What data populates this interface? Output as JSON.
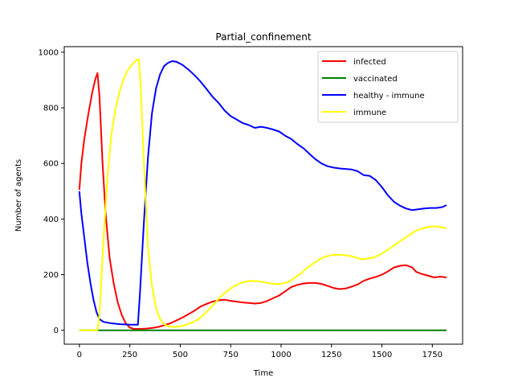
{
  "chart_data": {
    "type": "line",
    "title": "Partial_confinement",
    "xlabel": "Time",
    "ylabel": "Number of agents",
    "xlim": [
      -75,
      1900
    ],
    "ylim": [
      -50,
      1020
    ],
    "xticks": [
      0,
      250,
      500,
      750,
      1000,
      1250,
      1500,
      1750
    ],
    "yticks": [
      0,
      200,
      400,
      600,
      800,
      1000
    ],
    "grid": false,
    "legend_position": "top-right",
    "series": [
      {
        "name": "infected",
        "color": "#ff0000",
        "points": [
          [
            0,
            505
          ],
          [
            10,
            600
          ],
          [
            25,
            690
          ],
          [
            45,
            780
          ],
          [
            65,
            860
          ],
          [
            80,
            905
          ],
          [
            90,
            925
          ],
          [
            100,
            840
          ],
          [
            115,
            600
          ],
          [
            130,
            420
          ],
          [
            150,
            260
          ],
          [
            170,
            170
          ],
          [
            190,
            100
          ],
          [
            210,
            55
          ],
          [
            230,
            25
          ],
          [
            250,
            10
          ],
          [
            270,
            5
          ],
          [
            300,
            5
          ],
          [
            330,
            6
          ],
          [
            360,
            8
          ],
          [
            390,
            12
          ],
          [
            420,
            18
          ],
          [
            450,
            25
          ],
          [
            480,
            35
          ],
          [
            510,
            45
          ],
          [
            540,
            58
          ],
          [
            570,
            70
          ],
          [
            600,
            85
          ],
          [
            630,
            95
          ],
          [
            660,
            103
          ],
          [
            690,
            108
          ],
          [
            720,
            110
          ],
          [
            750,
            106
          ],
          [
            780,
            103
          ],
          [
            810,
            100
          ],
          [
            840,
            98
          ],
          [
            870,
            96
          ],
          [
            900,
            98
          ],
          [
            930,
            105
          ],
          [
            960,
            115
          ],
          [
            990,
            125
          ],
          [
            1020,
            140
          ],
          [
            1050,
            155
          ],
          [
            1080,
            163
          ],
          [
            1110,
            168
          ],
          [
            1140,
            170
          ],
          [
            1170,
            170
          ],
          [
            1200,
            167
          ],
          [
            1230,
            160
          ],
          [
            1260,
            152
          ],
          [
            1290,
            148
          ],
          [
            1320,
            150
          ],
          [
            1350,
            157
          ],
          [
            1380,
            165
          ],
          [
            1410,
            178
          ],
          [
            1440,
            186
          ],
          [
            1470,
            192
          ],
          [
            1500,
            200
          ],
          [
            1530,
            212
          ],
          [
            1560,
            226
          ],
          [
            1590,
            232
          ],
          [
            1620,
            234
          ],
          [
            1650,
            226
          ],
          [
            1670,
            210
          ],
          [
            1700,
            202
          ],
          [
            1730,
            196
          ],
          [
            1760,
            190
          ],
          [
            1790,
            193
          ],
          [
            1820,
            190
          ]
        ]
      },
      {
        "name": "vaccinated",
        "color": "#008000",
        "points": [
          [
            0,
            0
          ],
          [
            1820,
            0
          ]
        ]
      },
      {
        "name": "healthy - immune",
        "color": "#0000ff",
        "points": [
          [
            0,
            500
          ],
          [
            10,
            420
          ],
          [
            25,
            330
          ],
          [
            40,
            240
          ],
          [
            55,
            170
          ],
          [
            70,
            110
          ],
          [
            85,
            65
          ],
          [
            100,
            40
          ],
          [
            120,
            30
          ],
          [
            150,
            26
          ],
          [
            200,
            22
          ],
          [
            250,
            20
          ],
          [
            290,
            20
          ],
          [
            300,
            130
          ],
          [
            320,
            390
          ],
          [
            340,
            620
          ],
          [
            360,
            780
          ],
          [
            380,
            870
          ],
          [
            400,
            920
          ],
          [
            420,
            950
          ],
          [
            440,
            962
          ],
          [
            460,
            968
          ],
          [
            480,
            966
          ],
          [
            510,
            955
          ],
          [
            540,
            938
          ],
          [
            570,
            918
          ],
          [
            600,
            895
          ],
          [
            630,
            868
          ],
          [
            660,
            840
          ],
          [
            690,
            818
          ],
          [
            720,
            790
          ],
          [
            750,
            770
          ],
          [
            780,
            758
          ],
          [
            810,
            745
          ],
          [
            840,
            738
          ],
          [
            870,
            728
          ],
          [
            900,
            732
          ],
          [
            930,
            728
          ],
          [
            960,
            722
          ],
          [
            990,
            715
          ],
          [
            1020,
            700
          ],
          [
            1050,
            688
          ],
          [
            1080,
            670
          ],
          [
            1110,
            655
          ],
          [
            1140,
            635
          ],
          [
            1170,
            615
          ],
          [
            1200,
            600
          ],
          [
            1230,
            590
          ],
          [
            1260,
            585
          ],
          [
            1290,
            582
          ],
          [
            1320,
            580
          ],
          [
            1350,
            578
          ],
          [
            1380,
            572
          ],
          [
            1410,
            558
          ],
          [
            1440,
            555
          ],
          [
            1470,
            540
          ],
          [
            1500,
            515
          ],
          [
            1530,
            485
          ],
          [
            1560,
            462
          ],
          [
            1590,
            448
          ],
          [
            1620,
            438
          ],
          [
            1650,
            432
          ],
          [
            1680,
            435
          ],
          [
            1710,
            438
          ],
          [
            1740,
            440
          ],
          [
            1770,
            440
          ],
          [
            1800,
            443
          ],
          [
            1820,
            450
          ]
        ]
      },
      {
        "name": "immune",
        "color": "#ffff00",
        "points": [
          [
            0,
            0
          ],
          [
            90,
            0
          ],
          [
            100,
            60
          ],
          [
            120,
            330
          ],
          [
            140,
            560
          ],
          [
            160,
            710
          ],
          [
            180,
            800
          ],
          [
            200,
            860
          ],
          [
            220,
            905
          ],
          [
            240,
            935
          ],
          [
            260,
            955
          ],
          [
            280,
            970
          ],
          [
            295,
            975
          ],
          [
            305,
            870
          ],
          [
            320,
            600
          ],
          [
            340,
            300
          ],
          [
            360,
            160
          ],
          [
            380,
            80
          ],
          [
            400,
            40
          ],
          [
            420,
            22
          ],
          [
            440,
            14
          ],
          [
            470,
            12
          ],
          [
            500,
            14
          ],
          [
            530,
            20
          ],
          [
            560,
            28
          ],
          [
            590,
            40
          ],
          [
            620,
            58
          ],
          [
            650,
            80
          ],
          [
            680,
            105
          ],
          [
            710,
            128
          ],
          [
            740,
            145
          ],
          [
            770,
            160
          ],
          [
            800,
            170
          ],
          [
            830,
            176
          ],
          [
            860,
            178
          ],
          [
            890,
            176
          ],
          [
            920,
            172
          ],
          [
            950,
            168
          ],
          [
            980,
            166
          ],
          [
            1010,
            168
          ],
          [
            1040,
            175
          ],
          [
            1070,
            190
          ],
          [
            1100,
            205
          ],
          [
            1130,
            225
          ],
          [
            1160,
            240
          ],
          [
            1190,
            255
          ],
          [
            1220,
            265
          ],
          [
            1250,
            270
          ],
          [
            1280,
            272
          ],
          [
            1310,
            270
          ],
          [
            1340,
            268
          ],
          [
            1370,
            262
          ],
          [
            1400,
            255
          ],
          [
            1430,
            258
          ],
          [
            1460,
            262
          ],
          [
            1490,
            272
          ],
          [
            1520,
            285
          ],
          [
            1550,
            300
          ],
          [
            1580,
            315
          ],
          [
            1610,
            330
          ],
          [
            1640,
            345
          ],
          [
            1670,
            358
          ],
          [
            1700,
            366
          ],
          [
            1730,
            372
          ],
          [
            1760,
            374
          ],
          [
            1790,
            372
          ],
          [
            1820,
            365
          ]
        ]
      }
    ]
  }
}
